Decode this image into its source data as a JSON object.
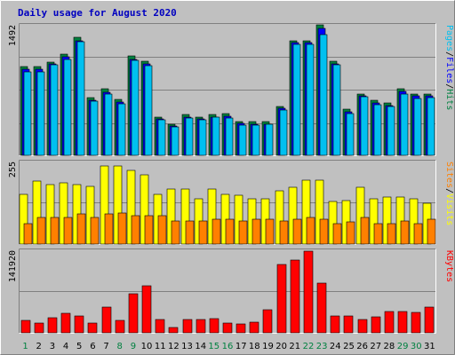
{
  "chart_data": {
    "type": "bar",
    "title": "Daily usage for August 2020",
    "categories": [
      "1",
      "2",
      "3",
      "4",
      "5",
      "6",
      "7",
      "8",
      "9",
      "10",
      "11",
      "12",
      "13",
      "14",
      "15",
      "16",
      "17",
      "18",
      "19",
      "20",
      "21",
      "22",
      "23",
      "24",
      "25",
      "26",
      "27",
      "28",
      "29",
      "30",
      "31"
    ],
    "weekend_days": [
      1,
      8,
      9,
      15,
      16,
      22,
      23,
      29,
      30
    ],
    "panels": [
      {
        "key": "hits",
        "y_label_value": "1492",
        "ymax": 1492,
        "legend": [
          {
            "text": "Pages",
            "color": "#00c0f0"
          },
          {
            "text": "/",
            "color": "#000000"
          },
          {
            "text": "Files",
            "color": "#0000ff"
          },
          {
            "text": "/",
            "color": "#000000"
          },
          {
            "text": "Hits",
            "color": "#008040"
          }
        ],
        "series": [
          {
            "name": "Hits",
            "color": "#008040",
            "values": [
              1040,
              1040,
              1090,
              1180,
              1380,
              670,
              780,
              650,
              1160,
              1100,
              450,
              360,
              480,
              450,
              480,
              490,
              390,
              390,
              390,
              570,
              1340,
              1340,
              1520,
              1100,
              540,
              720,
              640,
              610,
              780,
              720,
              710
            ]
          },
          {
            "name": "Files",
            "color": "#0000ff",
            "values": [
              1000,
              1000,
              1070,
              1150,
              1340,
              640,
              740,
              620,
              1120,
              1070,
              420,
              340,
              450,
              420,
              450,
              460,
              370,
              360,
              360,
              550,
              1320,
              1320,
              1480,
              1070,
              510,
              690,
              610,
              580,
              750,
              690,
              690
            ]
          },
          {
            "name": "Pages",
            "color": "#00c0f0",
            "values": [
              970,
              970,
              1060,
              1120,
              1330,
              630,
              720,
              600,
              1110,
              1050,
              410,
              330,
              440,
              410,
              450,
              440,
              350,
              350,
              360,
              530,
              1300,
              1300,
              1410,
              1060,
              490,
              680,
              590,
              570,
              720,
              660,
              670
            ]
          }
        ]
      },
      {
        "key": "visits",
        "y_label_value": "255",
        "ymax": 255,
        "legend": [
          {
            "text": "Sites",
            "color": "#ff8000"
          },
          {
            "text": "/",
            "color": "#000000"
          },
          {
            "text": "Visits",
            "color": "#ffff00"
          }
        ],
        "series": [
          {
            "name": "Visits",
            "color": "#ffff00",
            "values": [
              160,
              200,
              190,
              195,
              190,
              185,
              250,
              250,
              235,
              220,
              160,
              175,
              175,
              145,
              175,
              160,
              155,
              145,
              145,
              170,
              180,
              205,
              205,
              135,
              140,
              180,
              145,
              150,
              150,
              145,
              130
            ]
          },
          {
            "name": "Sites",
            "color": "#ff8000",
            "values": [
              65,
              85,
              85,
              85,
              95,
              85,
              95,
              100,
              90,
              90,
              90,
              75,
              75,
              75,
              80,
              80,
              75,
              80,
              80,
              75,
              80,
              85,
              80,
              65,
              70,
              85,
              65,
              65,
              75,
              65,
              80
            ]
          }
        ]
      },
      {
        "key": "kbytes",
        "y_label_value": "141920",
        "ymax": 141920,
        "legend": [
          {
            "text": "KBytes",
            "color": "#ff0000"
          }
        ],
        "series": [
          {
            "name": "KBytes",
            "color": "#ff0000",
            "values": [
              22000,
              18000,
              27000,
              34000,
              30000,
              17000,
              46000,
              22000,
              70000,
              83000,
              23000,
              9000,
              23000,
              23000,
              25000,
              17000,
              16000,
              19000,
              41000,
              122000,
              130000,
              145000,
              88000,
              30000,
              30000,
              24000,
              28000,
              38000,
              38000,
              37000,
              46000
            ]
          }
        ]
      }
    ]
  }
}
